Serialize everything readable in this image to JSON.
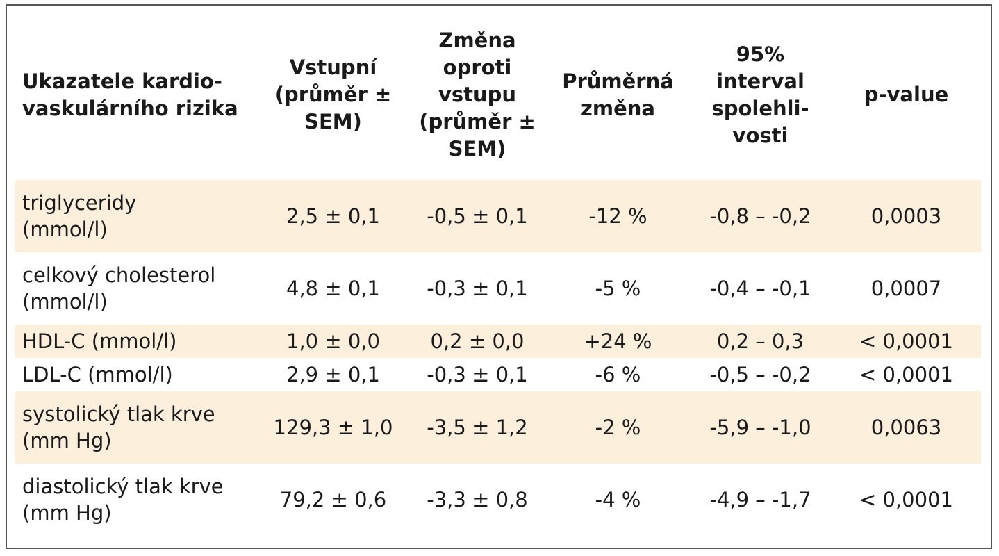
{
  "table": {
    "headers": [
      [
        "Ukazatele kardio-",
        "vaskulárního rizika"
      ],
      [
        "Vstupní",
        "(průměr ±",
        "SEM)"
      ],
      [
        "Změna",
        "oproti",
        "vstupu",
        "(průměr ±",
        "SEM)"
      ],
      [
        "Průměrná",
        "změna"
      ],
      [
        "95%",
        "interval",
        "spolehli-",
        "vosti"
      ],
      [
        "p-value"
      ]
    ],
    "rows": [
      {
        "indicator": [
          "triglyceridy",
          "(mmol/l)"
        ],
        "baseline": "2,5 ± 0,1",
        "change": "-0,5 ± 0,1",
        "mean_change": "-12 %",
        "ci": "-0,8 – -0,2",
        "p_value": "0,0003"
      },
      {
        "indicator": [
          "celkový cholesterol",
          "(mmol/l)"
        ],
        "baseline": "4,8 ± 0,1",
        "change": "-0,3 ± 0,1",
        "mean_change": "-5 %",
        "ci": "-0,4 – -0,1",
        "p_value": "0,0007"
      },
      {
        "indicator": [
          "HDL-C (mmol/l)"
        ],
        "baseline": "1,0 ± 0,0",
        "change": "0,2 ± 0,0",
        "mean_change": "+24 %",
        "ci": "0,2 – 0,3",
        "p_value": "< 0,0001"
      },
      {
        "indicator": [
          "LDL-C (mmol/l)"
        ],
        "baseline": "2,9 ± 0,1",
        "change": "-0,3 ± 0,1",
        "mean_change": "-6 %",
        "ci": "-0,5 – -0,2",
        "p_value": "< 0,0001"
      },
      {
        "indicator": [
          "systolický tlak krve",
          "(mm Hg)"
        ],
        "baseline": "129,3 ± 1,0",
        "change": "-3,5 ± 1,2",
        "mean_change": "-2 %",
        "ci": "-5,9 – -1,0",
        "p_value": "0,0063"
      },
      {
        "indicator": [
          "diastolický tlak krve",
          "(mm Hg)"
        ],
        "baseline": "79,2 ± 0,6",
        "change": "-3,3 ± 0,8",
        "mean_change": "-4 %",
        "ci": "-4,9 – -1,7",
        "p_value": "< 0,0001"
      }
    ],
    "row_shading_color": "#fcefdc",
    "border_color": "#555555"
  }
}
